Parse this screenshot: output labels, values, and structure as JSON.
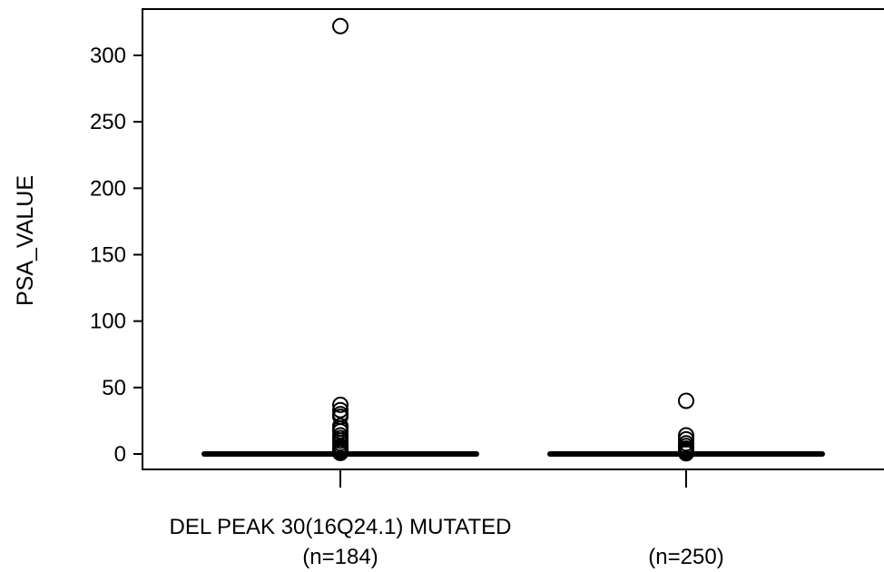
{
  "chart_data": {
    "type": "boxplot",
    "ylabel": "PSA_VALUE",
    "ylim": [
      0,
      330
    ],
    "yticks": [
      0,
      50,
      100,
      150,
      200,
      250,
      300
    ],
    "grid": false,
    "groups": [
      {
        "label": "DEL PEAK 30(16Q24.1) MUTATED",
        "n_label": "(n=184)",
        "median": 0,
        "q1": 0,
        "q3": 0,
        "whisker_low": 0,
        "whisker_high": 0,
        "outliers": [
          322,
          37,
          33,
          30,
          28,
          21,
          19,
          17,
          14,
          12,
          10,
          8,
          6,
          5,
          4,
          3,
          2,
          1.5,
          1,
          0.8
        ]
      },
      {
        "label": "",
        "n_label": "(n=250)",
        "median": 0,
        "q1": 0,
        "q3": 0,
        "whisker_low": 0,
        "whisker_high": 0,
        "outliers": [
          40,
          14,
          11,
          8,
          6,
          4,
          3,
          2,
          1.5,
          1,
          0.5
        ]
      }
    ]
  }
}
